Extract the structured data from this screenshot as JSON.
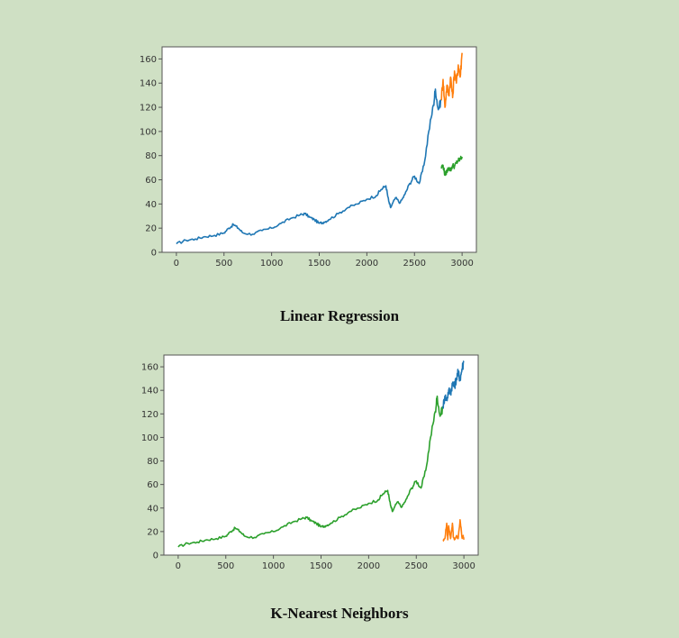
{
  "chart_data": [
    {
      "type": "line",
      "title": "Linear Regression",
      "xlabel": "",
      "ylabel": "",
      "xlim": [
        -150,
        3150
      ],
      "ylim": [
        0,
        170
      ],
      "xticks": [
        0,
        500,
        1000,
        1500,
        2000,
        2500,
        3000
      ],
      "yticks": [
        0,
        20,
        40,
        60,
        80,
        100,
        120,
        140,
        160
      ],
      "grid": false,
      "series": [
        {
          "color": "#1f77b4",
          "x": [
            0,
            100,
            200,
            300,
            400,
            500,
            550,
            600,
            650,
            700,
            800,
            900,
            1000,
            1100,
            1200,
            1300,
            1350,
            1400,
            1450,
            1500,
            1550,
            1600,
            1700,
            1800,
            1900,
            2000,
            2100,
            2150,
            2200,
            2230,
            2250,
            2300,
            2350,
            2400,
            2450,
            2500,
            2550,
            2600,
            2650,
            2700,
            2720,
            2750,
            2780
          ],
          "y": [
            7,
            10,
            11,
            13,
            14,
            16,
            20,
            23,
            20,
            16,
            15,
            18,
            20,
            24,
            28,
            31,
            32,
            29,
            27,
            24,
            25,
            27,
            32,
            37,
            40,
            44,
            47,
            52,
            55,
            42,
            37,
            45,
            41,
            48,
            57,
            63,
            57,
            72,
            100,
            122,
            135,
            118,
            126
          ]
        },
        {
          "color": "#ff7f0e",
          "x": [
            2780,
            2800,
            2820,
            2840,
            2860,
            2880,
            2900,
            2920,
            2940,
            2960,
            2980,
            3000
          ],
          "y": [
            126,
            143,
            120,
            138,
            130,
            145,
            128,
            150,
            140,
            155,
            145,
            165
          ]
        },
        {
          "color": "#2ca02c",
          "x": [
            2780,
            2800,
            2820,
            2840,
            2860,
            2880,
            2900,
            2920,
            2940,
            2960,
            2980,
            3000
          ],
          "y": [
            70,
            72,
            64,
            67,
            70,
            68,
            72,
            71,
            74,
            76,
            77,
            79
          ]
        }
      ]
    },
    {
      "type": "line",
      "title": "K-Nearest Neighbors",
      "xlabel": "",
      "ylabel": "",
      "xlim": [
        -150,
        3150
      ],
      "ylim": [
        0,
        170
      ],
      "xticks": [
        0,
        500,
        1000,
        1500,
        2000,
        2500,
        3000
      ],
      "yticks": [
        0,
        20,
        40,
        60,
        80,
        100,
        120,
        140,
        160
      ],
      "grid": false,
      "series": [
        {
          "color": "#2ca02c",
          "x": [
            0,
            100,
            200,
            300,
            400,
            500,
            550,
            600,
            650,
            700,
            800,
            900,
            1000,
            1100,
            1200,
            1300,
            1350,
            1400,
            1450,
            1500,
            1550,
            1600,
            1700,
            1800,
            1900,
            2000,
            2100,
            2150,
            2200,
            2230,
            2250,
            2300,
            2350,
            2400,
            2450,
            2500,
            2550,
            2600,
            2650,
            2700,
            2720,
            2750,
            2780
          ],
          "y": [
            7,
            10,
            11,
            13,
            14,
            16,
            20,
            23,
            20,
            16,
            15,
            18,
            20,
            24,
            28,
            31,
            32,
            29,
            27,
            24,
            25,
            27,
            32,
            37,
            40,
            44,
            47,
            52,
            55,
            42,
            37,
            45,
            41,
            48,
            57,
            63,
            57,
            72,
            100,
            122,
            135,
            118,
            126
          ]
        },
        {
          "color": "#1f77b4",
          "x": [
            2780,
            2800,
            2820,
            2840,
            2860,
            2880,
            2900,
            2920,
            2940,
            2960,
            2980,
            3000
          ],
          "y": [
            126,
            135,
            132,
            140,
            138,
            146,
            143,
            150,
            155,
            150,
            158,
            165
          ]
        },
        {
          "color": "#ff7f0e",
          "x": [
            2780,
            2800,
            2820,
            2830,
            2840,
            2860,
            2880,
            2890,
            2900,
            2920,
            2940,
            2960,
            2980,
            2990,
            3000
          ],
          "y": [
            12,
            14,
            27,
            13,
            25,
            14,
            27,
            15,
            13,
            16,
            14,
            30,
            15,
            16,
            14
          ]
        }
      ]
    }
  ]
}
